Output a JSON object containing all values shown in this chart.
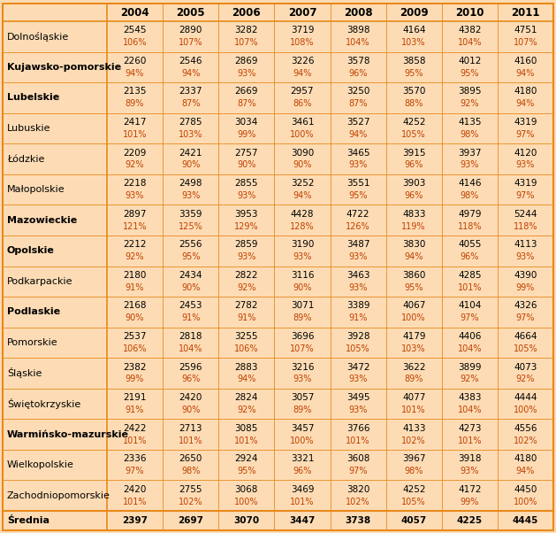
{
  "years": [
    "2004",
    "2005",
    "2006",
    "2007",
    "2008",
    "2009",
    "2010",
    "2011"
  ],
  "regions": [
    "Dolnośląskie",
    "Kujawsko-pomorskie",
    "Lubelskie",
    "Lubuskie",
    "Łódzkie",
    "Małopolskie",
    "Mazowieckie",
    "Opolskie",
    "Podkarpackie",
    "Podlaskie",
    "Pomorskie",
    "Śląskie",
    "Świętokrzyskie",
    "Warmińsko-mazurskie",
    "Wielkopolskie",
    "Zachodniopomorskie"
  ],
  "values": [
    [
      2545,
      2890,
      3282,
      3719,
      3898,
      4164,
      4382,
      4751
    ],
    [
      2260,
      2546,
      2869,
      3226,
      3578,
      3858,
      4012,
      4160
    ],
    [
      2135,
      2337,
      2669,
      2957,
      3250,
      3570,
      3895,
      4180
    ],
    [
      2417,
      2785,
      3034,
      3461,
      3527,
      4252,
      4135,
      4319
    ],
    [
      2209,
      2421,
      2757,
      3090,
      3465,
      3915,
      3937,
      4120
    ],
    [
      2218,
      2498,
      2855,
      3252,
      3551,
      3903,
      4146,
      4319
    ],
    [
      2897,
      3359,
      3953,
      4428,
      4722,
      4833,
      4979,
      5244
    ],
    [
      2212,
      2556,
      2859,
      3190,
      3487,
      3830,
      4055,
      4113
    ],
    [
      2180,
      2434,
      2822,
      3116,
      3463,
      3860,
      4285,
      4390
    ],
    [
      2168,
      2453,
      2782,
      3071,
      3389,
      4067,
      4104,
      4326
    ],
    [
      2537,
      2818,
      3255,
      3696,
      3928,
      4179,
      4406,
      4664
    ],
    [
      2382,
      2596,
      2883,
      3216,
      3472,
      3622,
      3899,
      4073
    ],
    [
      2191,
      2420,
      2824,
      3057,
      3495,
      4077,
      4383,
      4444
    ],
    [
      2422,
      2713,
      3085,
      3457,
      3766,
      4133,
      4273,
      4556
    ],
    [
      2336,
      2650,
      2924,
      3321,
      3608,
      3967,
      3918,
      4180
    ],
    [
      2420,
      2755,
      3068,
      3469,
      3820,
      4252,
      4172,
      4450
    ]
  ],
  "percentages": [
    [
      "106%",
      "107%",
      "107%",
      "108%",
      "104%",
      "103%",
      "104%",
      "107%"
    ],
    [
      "94%",
      "94%",
      "93%",
      "94%",
      "96%",
      "95%",
      "95%",
      "94%"
    ],
    [
      "89%",
      "87%",
      "87%",
      "86%",
      "87%",
      "88%",
      "92%",
      "94%"
    ],
    [
      "101%",
      "103%",
      "99%",
      "100%",
      "94%",
      "105%",
      "98%",
      "97%"
    ],
    [
      "92%",
      "90%",
      "90%",
      "90%",
      "93%",
      "96%",
      "93%",
      "93%"
    ],
    [
      "93%",
      "93%",
      "93%",
      "94%",
      "95%",
      "96%",
      "98%",
      "97%"
    ],
    [
      "121%",
      "125%",
      "129%",
      "128%",
      "126%",
      "119%",
      "118%",
      "118%"
    ],
    [
      "92%",
      "95%",
      "93%",
      "93%",
      "93%",
      "94%",
      "96%",
      "93%"
    ],
    [
      "91%",
      "90%",
      "92%",
      "90%",
      "93%",
      "95%",
      "101%",
      "99%"
    ],
    [
      "90%",
      "91%",
      "91%",
      "89%",
      "91%",
      "100%",
      "97%",
      "97%"
    ],
    [
      "106%",
      "104%",
      "106%",
      "107%",
      "105%",
      "103%",
      "104%",
      "105%"
    ],
    [
      "99%",
      "96%",
      "94%",
      "93%",
      "93%",
      "89%",
      "92%",
      "92%"
    ],
    [
      "91%",
      "90%",
      "92%",
      "89%",
      "93%",
      "101%",
      "104%",
      "100%"
    ],
    [
      "101%",
      "101%",
      "101%",
      "100%",
      "101%",
      "102%",
      "101%",
      "102%"
    ],
    [
      "97%",
      "98%",
      "95%",
      "96%",
      "97%",
      "98%",
      "93%",
      "94%"
    ],
    [
      "101%",
      "102%",
      "100%",
      "101%",
      "102%",
      "105%",
      "99%",
      "100%"
    ]
  ],
  "srednia_values": [
    2397,
    2697,
    3070,
    3447,
    3738,
    4057,
    4225,
    4445
  ],
  "bg_color": "#FDDCB5",
  "border_color": "#E8891A",
  "pct_color": "#C04000",
  "bold_regions": [
    "Kujawsko-pomorskie",
    "Lubelskie",
    "Mazowieckie",
    "Opolskie",
    "Podlaskie",
    "Warmińsko-mazurskie"
  ],
  "header_fontsize": 8.5,
  "cell_fontsize": 7.5,
  "region_fontsize": 8.0
}
